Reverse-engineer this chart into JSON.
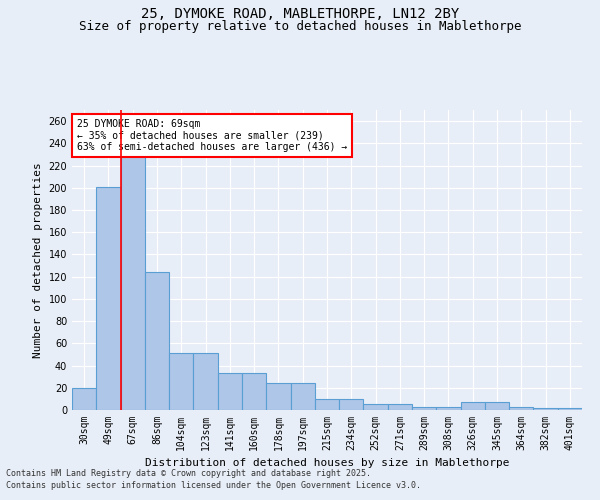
{
  "title1": "25, DYMOKE ROAD, MABLETHORPE, LN12 2BY",
  "title2": "Size of property relative to detached houses in Mablethorpe",
  "xlabel": "Distribution of detached houses by size in Mablethorpe",
  "ylabel": "Number of detached properties",
  "categories": [
    "30sqm",
    "49sqm",
    "67sqm",
    "86sqm",
    "104sqm",
    "123sqm",
    "141sqm",
    "160sqm",
    "178sqm",
    "197sqm",
    "215sqm",
    "234sqm",
    "252sqm",
    "271sqm",
    "289sqm",
    "308sqm",
    "326sqm",
    "345sqm",
    "364sqm",
    "382sqm",
    "401sqm"
  ],
  "values": [
    20,
    201,
    229,
    124,
    51,
    51,
    33,
    33,
    24,
    24,
    10,
    10,
    5,
    5,
    3,
    3,
    7,
    7,
    3,
    2,
    2
  ],
  "bar_color": "#aec6e8",
  "bar_edge_color": "#5a9fd4",
  "red_line_index": 2,
  "annotation_text": "25 DYMOKE ROAD: 69sqm\n← 35% of detached houses are smaller (239)\n63% of semi-detached houses are larger (436) →",
  "annotation_box_color": "white",
  "annotation_box_edge_color": "red",
  "footer1": "Contains HM Land Registry data © Crown copyright and database right 2025.",
  "footer2": "Contains public sector information licensed under the Open Government Licence v3.0.",
  "ylim": [
    0,
    270
  ],
  "yticks": [
    0,
    20,
    40,
    60,
    80,
    100,
    120,
    140,
    160,
    180,
    200,
    220,
    240,
    260
  ],
  "background_color": "#e8eef7",
  "plot_bg_color": "#e8eef7",
  "grid_color": "white",
  "title1_fontsize": 10,
  "title2_fontsize": 9,
  "axis_label_fontsize": 8,
  "tick_fontsize": 7,
  "annotation_fontsize": 7,
  "footer_fontsize": 6
}
